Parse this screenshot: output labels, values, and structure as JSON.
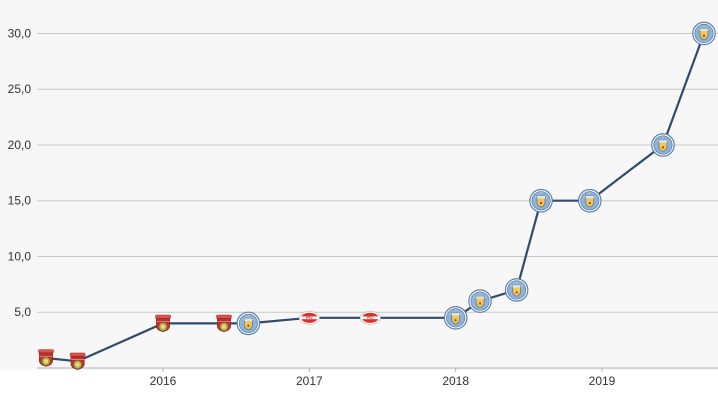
{
  "chart_data": {
    "type": "line",
    "title": "",
    "xlabel": "",
    "ylabel": "",
    "x_ticks": [
      "2016",
      "2017",
      "2018",
      "2019"
    ],
    "y_ticks": [
      "5,0",
      "10,0",
      "15,0",
      "20,0",
      "25,0",
      "30,0"
    ],
    "ylim": [
      0,
      33
    ],
    "grid": true,
    "series": [
      {
        "values": [
          {
            "x": "2015-03",
            "y": 0.9,
            "club": "club-a-crest-icon"
          },
          {
            "x": "2015-06",
            "y": 0.6,
            "club": "club-a-crest-icon"
          },
          {
            "x": "2016-01",
            "y": 4.0,
            "club": "club-a-crest-icon"
          },
          {
            "x": "2016-06",
            "y": 4.0,
            "club": "club-a-crest-icon"
          },
          {
            "x": "2016-08",
            "y": 4.0,
            "club": "manchester-city-crest-icon"
          },
          {
            "x": "2017-01",
            "y": 4.5,
            "club": "psv-crest-icon"
          },
          {
            "x": "2017-06",
            "y": 4.5,
            "club": "psv-crest-icon"
          },
          {
            "x": "2018-01",
            "y": 4.5,
            "club": "manchester-city-crest-icon"
          },
          {
            "x": "2018-03",
            "y": 6.0,
            "club": "manchester-city-crest-icon"
          },
          {
            "x": "2018-06",
            "y": 7.0,
            "club": "manchester-city-crest-icon"
          },
          {
            "x": "2018-08",
            "y": 15.0,
            "club": "manchester-city-crest-icon"
          },
          {
            "x": "2018-12",
            "y": 15.0,
            "club": "manchester-city-crest-icon"
          },
          {
            "x": "2019-06",
            "y": 20.0,
            "club": "manchester-city-crest-icon"
          },
          {
            "x": "2019-12",
            "y": 30.0,
            "club": "manchester-city-crest-icon"
          }
        ]
      }
    ]
  },
  "colors": {
    "line": "#2f4b6e",
    "grid": "#c9c9c9",
    "plot_bg": "#f7f7f7",
    "city_blue": "#6a9ad0",
    "city_yellow": "#f2c94c",
    "club_a_red": "#c0302c",
    "club_a_green": "#9aa23a",
    "psv_red": "#d9322e"
  }
}
